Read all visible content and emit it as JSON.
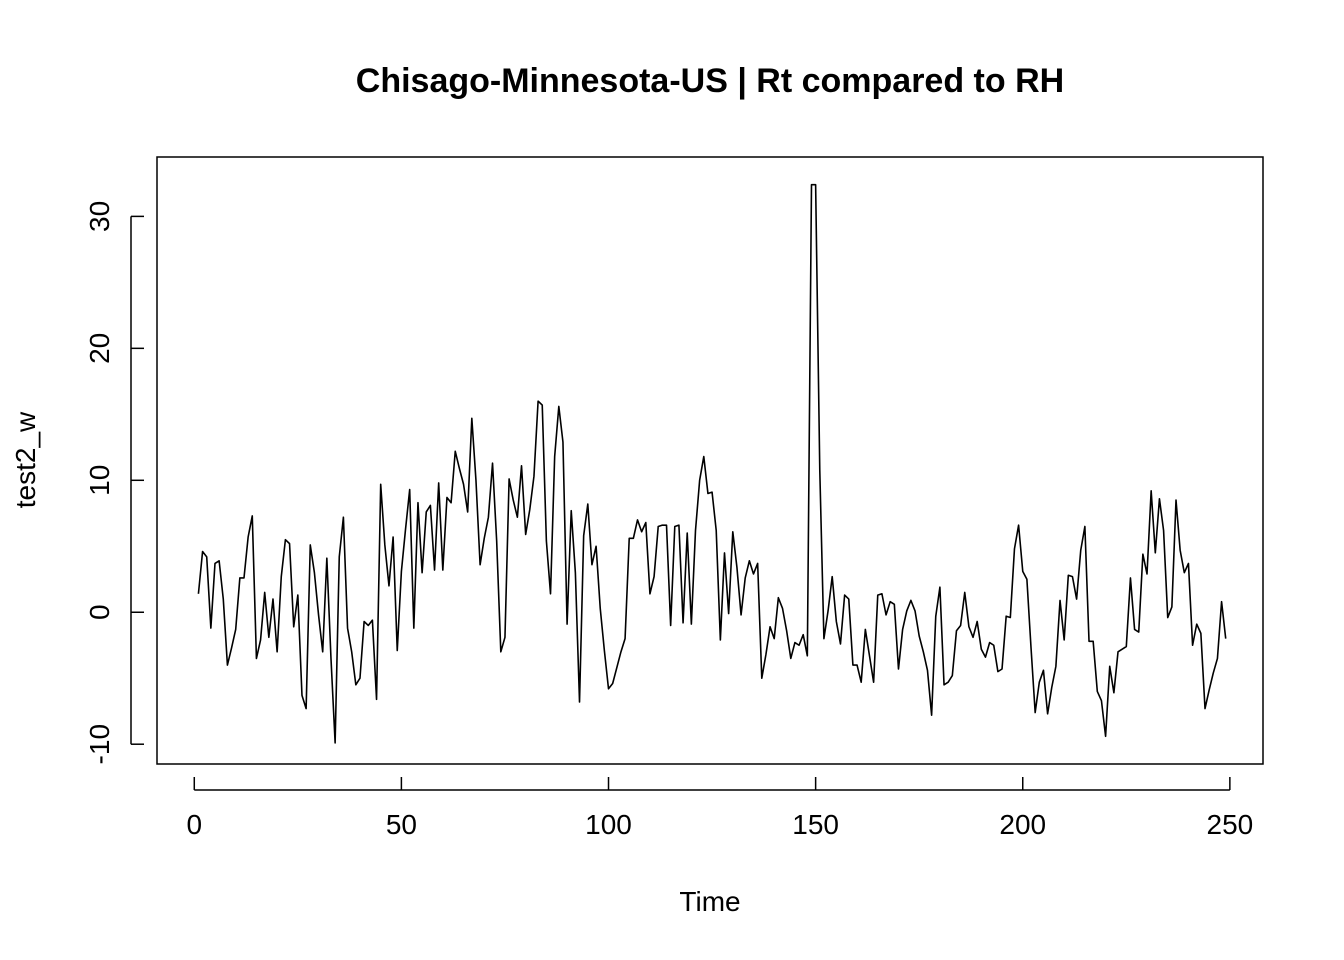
{
  "chart_data": {
    "type": "line",
    "title": "Chisago-Minnesota-US | Rt compared to RH",
    "xlabel": "Time",
    "ylabel": "test2_w",
    "xlim": [
      -9,
      258
    ],
    "ylim": [
      -11.5,
      34.5
    ],
    "xticks": [
      0,
      50,
      100,
      150,
      200,
      250
    ],
    "yticks": [
      -10,
      0,
      10,
      20,
      30
    ],
    "grid": false,
    "legend": "none",
    "line_color": "#000000",
    "series": [
      {
        "x_start": 1,
        "values": [
          1.4,
          4.6,
          4.2,
          -1.2,
          3.7,
          3.9,
          1.0,
          -4.0,
          -2.7,
          -1.3,
          2.6,
          2.6,
          5.7,
          7.3,
          -3.5,
          -2.1,
          1.5,
          -1.9,
          1.0,
          -3.0,
          2.7,
          5.5,
          5.2,
          -1.1,
          1.3,
          -6.3,
          -7.3,
          5.1,
          3.0,
          -0.2,
          -3.0,
          4.1,
          -3.5,
          -9.9,
          4.2,
          7.2,
          -1.2,
          -3.0,
          -5.5,
          -5.0,
          -0.7,
          -1.0,
          -0.6,
          -6.6,
          9.7,
          5.1,
          2.0,
          5.7,
          -2.9,
          3.1,
          6.3,
          9.3,
          -1.2,
          8.3,
          3.0,
          7.6,
          8.1,
          3.2,
          9.8,
          3.2,
          8.7,
          8.3,
          12.2,
          10.9,
          9.7,
          7.6,
          14.7,
          10.0,
          3.6,
          5.6,
          7.2,
          11.3,
          5.4,
          -3.0,
          -1.9,
          10.1,
          8.5,
          7.2,
          11.1,
          5.9,
          7.8,
          10.3,
          16.0,
          15.7,
          5.4,
          1.4,
          11.8,
          15.6,
          12.9,
          -0.9,
          7.7,
          3.0,
          -6.8,
          5.8,
          8.2,
          3.6,
          5.0,
          0.3,
          -2.9,
          -5.8,
          -5.4,
          -4.2,
          -3.0,
          -2.0,
          5.6,
          5.6,
          7.0,
          6.1,
          6.8,
          1.4,
          2.7,
          6.5,
          6.6,
          6.6,
          -1.0,
          6.5,
          6.6,
          -0.8,
          6.0,
          -0.9,
          6.2,
          10.0,
          11.8,
          9.0,
          9.1,
          6.2,
          -2.1,
          4.5,
          -0.1,
          6.1,
          3.4,
          -0.2,
          2.6,
          3.9,
          2.9,
          3.7,
          -5.0,
          -3.2,
          -1.1,
          -2.0,
          1.1,
          0.3,
          -1.4,
          -3.5,
          -2.3,
          -2.5,
          -1.7,
          -3.3,
          32.4,
          32.4,
          10.8,
          -2.0,
          0.1,
          2.7,
          -0.7,
          -2.4,
          1.3,
          1.0,
          -4.0,
          -4.0,
          -5.3,
          -1.3,
          -3.3,
          -5.3,
          1.3,
          1.4,
          -0.2,
          0.8,
          0.6,
          -4.3,
          -1.3,
          0.1,
          0.9,
          0.1,
          -1.8,
          -3.0,
          -4.4,
          -7.8,
          -0.3,
          1.9,
          -5.5,
          -5.3,
          -4.8,
          -1.4,
          -1.0,
          1.5,
          -1.1,
          -1.9,
          -0.7,
          -2.8,
          -3.4,
          -2.3,
          -2.5,
          -4.5,
          -4.3,
          -0.3,
          -0.4,
          4.8,
          6.6,
          3.1,
          2.5,
          -2.7,
          -7.6,
          -5.3,
          -4.4,
          -7.7,
          -5.7,
          -4.1,
          0.9,
          -2.1,
          2.8,
          2.7,
          1.0,
          4.7,
          6.5,
          -2.2,
          -2.2,
          -6.0,
          -6.7,
          -9.4,
          -4.1,
          -6.1,
          -3.0,
          -2.8,
          -2.6,
          2.6,
          -1.3,
          -1.5,
          4.4,
          2.9,
          9.2,
          4.5,
          8.6,
          6.2,
          -0.4,
          0.4,
          8.5,
          4.7,
          3.0,
          3.7,
          -2.5,
          -0.9,
          -1.6,
          -7.3,
          -5.9,
          -4.6,
          -3.5,
          0.8,
          -2.0
        ]
      }
    ]
  }
}
